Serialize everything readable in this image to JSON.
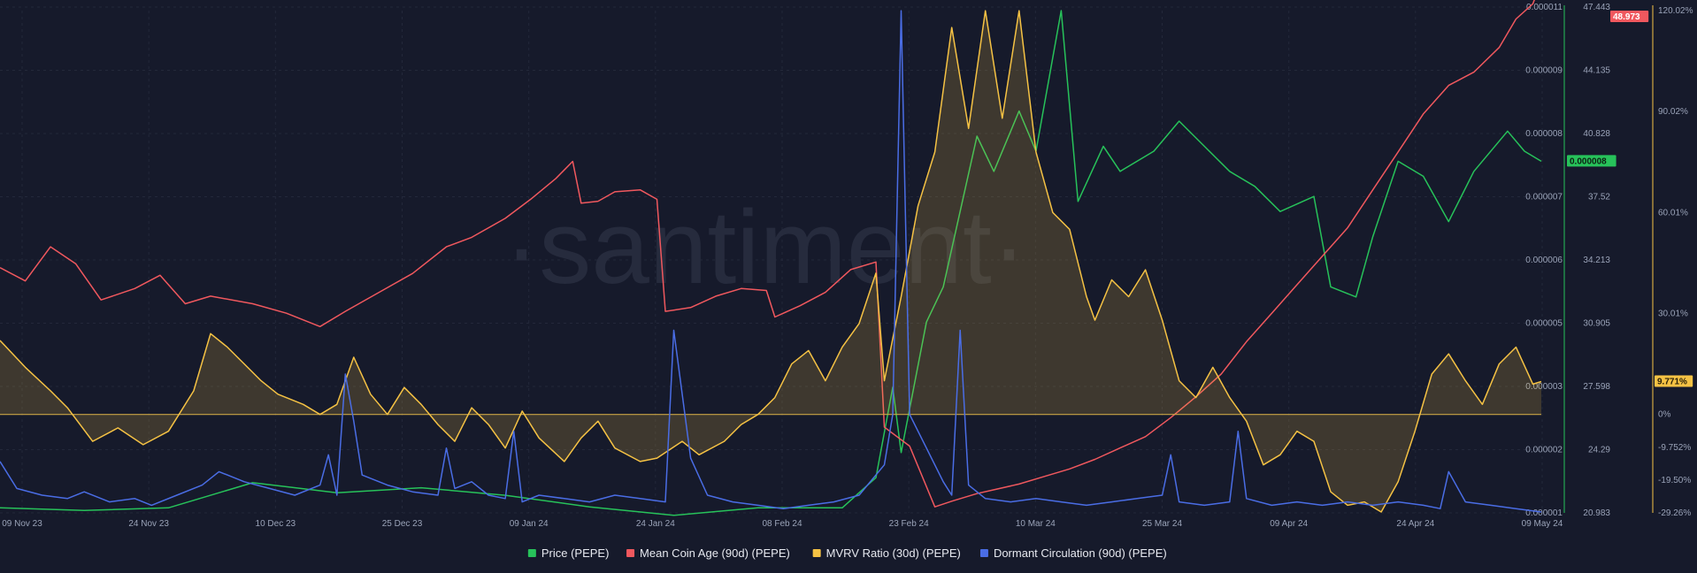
{
  "watermark": "·santiment·",
  "chart_data": {
    "type": "line",
    "x_ticks": [
      "09 Nov 23",
      "24 Nov 23",
      "10 Dec 23",
      "25 Dec 23",
      "09 Jan 24",
      "24 Jan 24",
      "08 Feb 24",
      "23 Feb 24",
      "10 Mar 24",
      "25 Mar 24",
      "09 Apr 24",
      "24 Apr 24",
      "09 May 24"
    ],
    "axes": {
      "price": {
        "ticks": [
          "0.000011",
          "0.000009",
          "0.000008",
          "0.000007",
          "0.000006",
          "0.000005",
          "0.000003",
          "0.000002",
          "0.000001"
        ],
        "ylim": [
          1e-06,
          1.1e-05
        ],
        "current": "0.000008",
        "color": "#27c25a"
      },
      "coin_age": {
        "ticks": [
          "47.443",
          "44.135",
          "40.828",
          "37.52",
          "34.213",
          "30.905",
          "27.598",
          "24.29",
          "20.983"
        ],
        "ylim": [
          20.983,
          47.443
        ],
        "current": "48.973",
        "color": "#f0585e"
      },
      "mvrv": {
        "ticks": [
          "120.02%",
          "90.02%",
          "60.01%",
          "30.01%",
          "0%",
          "-9.752%",
          "-19.50%",
          "-29.26%"
        ],
        "ylim": [
          -29.26,
          120.02
        ],
        "current": "9.771%",
        "color": "#f5c244"
      }
    },
    "series": [
      {
        "name": "Price (PEPE)",
        "color": "#27c25a",
        "axis": "price",
        "points": [
          [
            0,
            1.1e-06
          ],
          [
            10,
            1.05e-06
          ],
          [
            20,
            1.1e-06
          ],
          [
            30,
            1.6e-06
          ],
          [
            40,
            1.4e-06
          ],
          [
            50,
            1.5e-06
          ],
          [
            60,
            1.35e-06
          ],
          [
            70,
            1.12e-06
          ],
          [
            80,
            9.5e-07
          ],
          [
            90,
            1.1e-06
          ],
          [
            100,
            1.1e-06
          ],
          [
            104,
            1.7e-06
          ],
          [
            106,
            3.5e-06
          ],
          [
            107,
            2.2e-06
          ],
          [
            110,
            4.8e-06
          ],
          [
            112,
            5.5e-06
          ],
          [
            116,
            8.5e-06
          ],
          [
            118,
            7.8e-06
          ],
          [
            121,
            9e-06
          ],
          [
            123,
            8.2e-06
          ],
          [
            126,
            1.1e-05
          ],
          [
            128,
            7.2e-06
          ],
          [
            131,
            8.3e-06
          ],
          [
            133,
            7.8e-06
          ],
          [
            137,
            8.2e-06
          ],
          [
            140,
            8.8e-06
          ],
          [
            143,
            8.3e-06
          ],
          [
            146,
            7.8e-06
          ],
          [
            149,
            7.5e-06
          ],
          [
            152,
            7e-06
          ],
          [
            156,
            7.3e-06
          ],
          [
            158,
            5.5e-06
          ],
          [
            161,
            5.3e-06
          ],
          [
            163,
            6.5e-06
          ],
          [
            166,
            8e-06
          ],
          [
            169,
            7.7e-06
          ],
          [
            172,
            6.8e-06
          ],
          [
            175,
            7.8e-06
          ],
          [
            179,
            8.6e-06
          ],
          [
            181,
            8.2e-06
          ],
          [
            183,
            8e-06
          ]
        ]
      },
      {
        "name": "Mean Coin Age (90d) (PEPE)",
        "color": "#f0585e",
        "axis": "coin_age",
        "points": [
          [
            0,
            33.9
          ],
          [
            3,
            33.2
          ],
          [
            6,
            35.0
          ],
          [
            9,
            34.1
          ],
          [
            12,
            32.2
          ],
          [
            16,
            32.8
          ],
          [
            19,
            33.5
          ],
          [
            22,
            32.0
          ],
          [
            25,
            32.4
          ],
          [
            30,
            32.0
          ],
          [
            34,
            31.5
          ],
          [
            38,
            30.8
          ],
          [
            41,
            31.6
          ],
          [
            45,
            32.6
          ],
          [
            49,
            33.6
          ],
          [
            53,
            35.0
          ],
          [
            56,
            35.5
          ],
          [
            60,
            36.5
          ],
          [
            63,
            37.5
          ],
          [
            66,
            38.6
          ],
          [
            68,
            39.5
          ],
          [
            69,
            37.3
          ],
          [
            71,
            37.4
          ],
          [
            73,
            37.9
          ],
          [
            76,
            38.0
          ],
          [
            78,
            37.5
          ],
          [
            79,
            31.6
          ],
          [
            82,
            31.8
          ],
          [
            85,
            32.4
          ],
          [
            88,
            32.8
          ],
          [
            91,
            32.7
          ],
          [
            92,
            31.3
          ],
          [
            95,
            31.9
          ],
          [
            98,
            32.6
          ],
          [
            101,
            33.8
          ],
          [
            104,
            34.2
          ],
          [
            105,
            25.5
          ],
          [
            108,
            24.5
          ],
          [
            111,
            21.3
          ],
          [
            113,
            21.6
          ],
          [
            116,
            22.0
          ],
          [
            118,
            22.2
          ],
          [
            121,
            22.5
          ],
          [
            124,
            22.9
          ],
          [
            127,
            23.3
          ],
          [
            130,
            23.8
          ],
          [
            133,
            24.4
          ],
          [
            136,
            25.0
          ],
          [
            139,
            26.0
          ],
          [
            142,
            27.1
          ],
          [
            145,
            28.3
          ],
          [
            148,
            30.0
          ],
          [
            151,
            31.5
          ],
          [
            154,
            33.0
          ],
          [
            157,
            34.5
          ],
          [
            160,
            36.0
          ],
          [
            163,
            38.0
          ],
          [
            166,
            40.0
          ],
          [
            169,
            42.0
          ],
          [
            172,
            43.5
          ],
          [
            175,
            44.2
          ],
          [
            178,
            45.5
          ],
          [
            180,
            47.0
          ],
          [
            182,
            47.8
          ],
          [
            183,
            48.97
          ]
        ]
      },
      {
        "name": "MVRV Ratio (30d) (PEPE)",
        "color": "#f5c244",
        "axis": "mvrv",
        "points": [
          [
            0,
            22
          ],
          [
            3,
            14
          ],
          [
            6,
            7
          ],
          [
            8,
            2
          ],
          [
            11,
            -8
          ],
          [
            14,
            -4
          ],
          [
            17,
            -9
          ],
          [
            20,
            -5
          ],
          [
            23,
            7
          ],
          [
            25,
            24
          ],
          [
            27,
            20
          ],
          [
            29,
            15
          ],
          [
            31,
            10
          ],
          [
            33,
            6
          ],
          [
            36,
            3
          ],
          [
            38,
            0
          ],
          [
            40,
            3
          ],
          [
            42,
            17
          ],
          [
            44,
            6
          ],
          [
            46,
            0
          ],
          [
            48,
            8
          ],
          [
            50,
            3
          ],
          [
            52,
            -3
          ],
          [
            54,
            -8
          ],
          [
            56,
            2
          ],
          [
            58,
            -3
          ],
          [
            60,
            -10
          ],
          [
            62,
            1
          ],
          [
            64,
            -7
          ],
          [
            67,
            -14
          ],
          [
            69,
            -7
          ],
          [
            71,
            -2
          ],
          [
            73,
            -10
          ],
          [
            76,
            -14
          ],
          [
            78,
            -13
          ],
          [
            81,
            -8
          ],
          [
            83,
            -12
          ],
          [
            86,
            -8
          ],
          [
            88,
            -3
          ],
          [
            90,
            0
          ],
          [
            92,
            5
          ],
          [
            94,
            15
          ],
          [
            96,
            19
          ],
          [
            98,
            10
          ],
          [
            100,
            20
          ],
          [
            102,
            27
          ],
          [
            104,
            42
          ],
          [
            105,
            10
          ],
          [
            107,
            35
          ],
          [
            109,
            62
          ],
          [
            111,
            78
          ],
          [
            113,
            115
          ],
          [
            115,
            85
          ],
          [
            117,
            120
          ],
          [
            119,
            88
          ],
          [
            121,
            120
          ],
          [
            123,
            78
          ],
          [
            125,
            60
          ],
          [
            127,
            55
          ],
          [
            129,
            35
          ],
          [
            130,
            28
          ],
          [
            132,
            40
          ],
          [
            134,
            35
          ],
          [
            136,
            43
          ],
          [
            138,
            28
          ],
          [
            140,
            10
          ],
          [
            142,
            5
          ],
          [
            144,
            14
          ],
          [
            146,
            5
          ],
          [
            148,
            -2
          ],
          [
            150,
            -15
          ],
          [
            152,
            -12
          ],
          [
            154,
            -5
          ],
          [
            156,
            -8
          ],
          [
            158,
            -23
          ],
          [
            160,
            -27
          ],
          [
            162,
            -26
          ],
          [
            164,
            -29
          ],
          [
            166,
            -20
          ],
          [
            168,
            -5
          ],
          [
            170,
            12
          ],
          [
            172,
            18
          ],
          [
            174,
            10
          ],
          [
            176,
            3
          ],
          [
            178,
            15
          ],
          [
            180,
            20
          ],
          [
            182,
            9
          ],
          [
            183,
            9.77
          ]
        ]
      },
      {
        "name": "Dormant Circulation (90d) (PEPE)",
        "color": "#4a6de5",
        "axis": "mvrv",
        "points": [
          [
            0,
            -14
          ],
          [
            2,
            -22
          ],
          [
            5,
            -24
          ],
          [
            8,
            -25
          ],
          [
            10,
            -23
          ],
          [
            13,
            -26
          ],
          [
            16,
            -25
          ],
          [
            18,
            -27
          ],
          [
            21,
            -24
          ],
          [
            24,
            -21
          ],
          [
            26,
            -17
          ],
          [
            29,
            -20
          ],
          [
            32,
            -22
          ],
          [
            35,
            -24
          ],
          [
            38,
            -21
          ],
          [
            39,
            -12
          ],
          [
            40,
            -24
          ],
          [
            41,
            12
          ],
          [
            42,
            -2
          ],
          [
            43,
            -18
          ],
          [
            46,
            -21
          ],
          [
            49,
            -23
          ],
          [
            52,
            -24
          ],
          [
            53,
            -10
          ],
          [
            54,
            -22
          ],
          [
            56,
            -20
          ],
          [
            58,
            -24
          ],
          [
            60,
            -25
          ],
          [
            61,
            -5
          ],
          [
            62,
            -26
          ],
          [
            64,
            -24
          ],
          [
            67,
            -25
          ],
          [
            70,
            -26
          ],
          [
            73,
            -24
          ],
          [
            76,
            -25
          ],
          [
            79,
            -26
          ],
          [
            80,
            25
          ],
          [
            82,
            -13
          ],
          [
            84,
            -24
          ],
          [
            87,
            -26
          ],
          [
            90,
            -27
          ],
          [
            93,
            -28
          ],
          [
            96,
            -27
          ],
          [
            99,
            -26
          ],
          [
            102,
            -24
          ],
          [
            105,
            -15
          ],
          [
            106,
            0
          ],
          [
            107,
            120
          ],
          [
            108,
            0
          ],
          [
            110,
            -10
          ],
          [
            112,
            -20
          ],
          [
            113,
            -24
          ],
          [
            114,
            25
          ],
          [
            115,
            -21
          ],
          [
            117,
            -25
          ],
          [
            120,
            -26
          ],
          [
            123,
            -25
          ],
          [
            126,
            -26
          ],
          [
            129,
            -27
          ],
          [
            132,
            -26
          ],
          [
            135,
            -25
          ],
          [
            138,
            -24
          ],
          [
            139,
            -12
          ],
          [
            140,
            -26
          ],
          [
            143,
            -27
          ],
          [
            146,
            -26
          ],
          [
            147,
            -5
          ],
          [
            148,
            -25
          ],
          [
            151,
            -27
          ],
          [
            154,
            -26
          ],
          [
            157,
            -27
          ],
          [
            160,
            -26
          ],
          [
            163,
            -27
          ],
          [
            166,
            -26
          ],
          [
            169,
            -27
          ],
          [
            171,
            -28
          ],
          [
            172,
            -17
          ],
          [
            174,
            -26
          ],
          [
            177,
            -27
          ],
          [
            180,
            -28
          ],
          [
            183,
            -29
          ]
        ]
      }
    ],
    "legend": "bottom-center"
  }
}
